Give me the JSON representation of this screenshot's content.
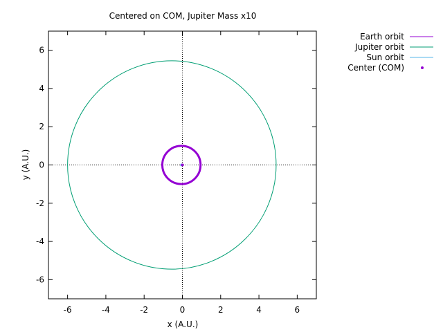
{
  "chart_data": {
    "type": "line",
    "title": "Centered on COM, Jupiter Mass x10",
    "xlabel": "x (A.U.)",
    "ylabel": "y (A.U.)",
    "xlim": [
      -7,
      7
    ],
    "ylim": [
      -7,
      7
    ],
    "xticks": [
      -6,
      -4,
      -2,
      0,
      2,
      4,
      6
    ],
    "yticks": [
      -6,
      -4,
      -2,
      0,
      2,
      4,
      6
    ],
    "xtick_labels": [
      "-6",
      "-4",
      "-2",
      "0",
      "2",
      "4",
      "6"
    ],
    "ytick_labels": [
      "-6",
      "-4",
      "-2",
      "0",
      "2",
      "4",
      "6"
    ],
    "grid": false,
    "zero_axes": true,
    "legend_position": "outside-top-right",
    "series": [
      {
        "name": "Earth orbit",
        "kind": "ellipse",
        "color": "#9400d3",
        "center": [
          -0.05,
          0
        ],
        "rx": 1.0,
        "ry": 1.0,
        "thick": true
      },
      {
        "name": "Jupiter orbit",
        "kind": "ellipse",
        "color": "#009e73",
        "center": [
          -0.55,
          0
        ],
        "rx": 5.45,
        "ry": 5.45,
        "thick": false
      },
      {
        "name": "Sun orbit",
        "kind": "ellipse",
        "color": "#56b4e9",
        "center": [
          -0.05,
          0
        ],
        "rx": 0.05,
        "ry": 0.05,
        "thick": false
      },
      {
        "name": "Center (COM)",
        "kind": "point",
        "color": "#9400d3",
        "x": 0,
        "y": 0
      }
    ]
  }
}
